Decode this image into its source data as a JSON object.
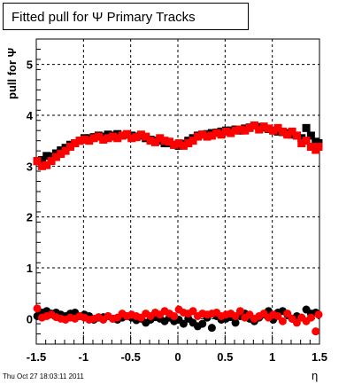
{
  "chart_data": {
    "type": "scatter",
    "title": "Fitted pull for  Ψ   Primary Tracks",
    "xlabel": "η",
    "ylabel": "pull for  Ψ",
    "xlim": [
      -1.5,
      1.5
    ],
    "ylim": [
      -0.5,
      5.5
    ],
    "xticks": [
      "-1.5",
      "-1",
      "-0.5",
      "0",
      "0.5",
      "1",
      "1.5"
    ],
    "yticks": [
      "0",
      "1",
      "2",
      "3",
      "4",
      "5"
    ],
    "grid": true,
    "footer": "Thu Oct 27 18:03:11 2011",
    "colors": {
      "series_black": "#000000",
      "series_red": "#ff0000"
    },
    "series": [
      {
        "marker": "square",
        "color": "#000000",
        "x": [
          -1.49,
          -1.44,
          -1.39,
          -1.34,
          -1.29,
          -1.24,
          -1.19,
          -1.14,
          -1.09,
          -1.04,
          -0.99,
          -0.94,
          -0.89,
          -0.84,
          -0.79,
          -0.74,
          -0.69,
          -0.64,
          -0.59,
          -0.54,
          -0.49,
          -0.44,
          -0.39,
          -0.34,
          -0.29,
          -0.24,
          -0.19,
          -0.14,
          -0.09,
          -0.04,
          0.01,
          0.06,
          0.11,
          0.16,
          0.21,
          0.26,
          0.31,
          0.36,
          0.41,
          0.46,
          0.51,
          0.56,
          0.61,
          0.66,
          0.71,
          0.76,
          0.81,
          0.86,
          0.91,
          0.96,
          1.01,
          1.06,
          1.11,
          1.16,
          1.21,
          1.26,
          1.31,
          1.36,
          1.41,
          1.46,
          1.49
        ],
        "y": [
          3.1,
          3.12,
          3.2,
          3.19,
          3.25,
          3.31,
          3.36,
          3.42,
          3.45,
          3.5,
          3.55,
          3.55,
          3.57,
          3.6,
          3.58,
          3.62,
          3.6,
          3.63,
          3.6,
          3.62,
          3.6,
          3.58,
          3.6,
          3.55,
          3.52,
          3.5,
          3.5,
          3.45,
          3.45,
          3.42,
          3.4,
          3.44,
          3.5,
          3.55,
          3.6,
          3.62,
          3.63,
          3.65,
          3.66,
          3.68,
          3.7,
          3.7,
          3.72,
          3.7,
          3.74,
          3.76,
          3.8,
          3.77,
          3.76,
          3.73,
          3.7,
          3.68,
          3.67,
          3.65,
          3.62,
          3.6,
          3.55,
          3.75,
          3.6,
          3.48,
          3.45
        ]
      },
      {
        "marker": "square",
        "color": "#ff0000",
        "x": [
          -1.49,
          -1.44,
          -1.39,
          -1.34,
          -1.29,
          -1.24,
          -1.19,
          -1.14,
          -1.09,
          -1.04,
          -0.99,
          -0.94,
          -0.89,
          -0.84,
          -0.79,
          -0.74,
          -0.69,
          -0.64,
          -0.59,
          -0.54,
          -0.49,
          -0.44,
          -0.39,
          -0.34,
          -0.29,
          -0.24,
          -0.19,
          -0.14,
          -0.09,
          -0.04,
          0.01,
          0.06,
          0.11,
          0.16,
          0.21,
          0.26,
          0.31,
          0.36,
          0.41,
          0.46,
          0.51,
          0.56,
          0.61,
          0.66,
          0.71,
          0.76,
          0.81,
          0.86,
          0.91,
          0.96,
          1.01,
          1.06,
          1.11,
          1.16,
          1.21,
          1.26,
          1.31,
          1.36,
          1.41,
          1.46,
          1.49
        ],
        "y": [
          3.1,
          3.0,
          3.02,
          3.1,
          3.18,
          3.24,
          3.3,
          3.38,
          3.45,
          3.5,
          3.52,
          3.5,
          3.55,
          3.58,
          3.52,
          3.55,
          3.58,
          3.55,
          3.6,
          3.63,
          3.55,
          3.57,
          3.62,
          3.58,
          3.5,
          3.47,
          3.55,
          3.5,
          3.48,
          3.42,
          3.45,
          3.4,
          3.45,
          3.5,
          3.58,
          3.62,
          3.58,
          3.6,
          3.65,
          3.62,
          3.68,
          3.65,
          3.7,
          3.72,
          3.7,
          3.75,
          3.8,
          3.72,
          3.78,
          3.74,
          3.7,
          3.75,
          3.68,
          3.62,
          3.68,
          3.6,
          3.45,
          3.5,
          3.38,
          3.32,
          3.38
        ]
      },
      {
        "marker": "circle",
        "color": "#000000",
        "x": [
          -1.49,
          -1.44,
          -1.39,
          -1.34,
          -1.29,
          -1.24,
          -1.19,
          -1.14,
          -1.09,
          -1.04,
          -0.99,
          -0.94,
          -0.89,
          -0.84,
          -0.79,
          -0.74,
          -0.69,
          -0.64,
          -0.59,
          -0.54,
          -0.49,
          -0.44,
          -0.39,
          -0.34,
          -0.29,
          -0.24,
          -0.19,
          -0.14,
          -0.09,
          -0.04,
          0.01,
          0.06,
          0.11,
          0.16,
          0.21,
          0.26,
          0.31,
          0.36,
          0.41,
          0.46,
          0.51,
          0.56,
          0.61,
          0.66,
          0.71,
          0.76,
          0.81,
          0.86,
          0.91,
          0.96,
          1.01,
          1.06,
          1.11,
          1.16,
          1.21,
          1.26,
          1.31,
          1.36,
          1.41,
          1.46,
          1.49
        ],
        "y": [
          0.05,
          0.12,
          0.15,
          0.1,
          0.12,
          0.08,
          0.05,
          0.1,
          0.12,
          0.05,
          0.08,
          0.05,
          -0.02,
          0.02,
          0.03,
          0.05,
          0.0,
          -0.02,
          0.02,
          0.05,
          0.02,
          -0.03,
          0.0,
          -0.08,
          -0.02,
          0.03,
          0.0,
          -0.05,
          0.02,
          -0.05,
          -0.02,
          -0.1,
          0.0,
          -0.08,
          -0.15,
          -0.1,
          0.02,
          -0.18,
          0.05,
          -0.02,
          0.0,
          0.03,
          -0.08,
          0.05,
          0.1,
          0.0,
          -0.05,
          0.02,
          0.08,
          0.15,
          -0.02,
          0.12,
          0.15,
          0.08,
          0.0,
          0.05,
          0.02,
          0.18,
          0.1,
          0.12,
          0.08
        ]
      },
      {
        "marker": "circle",
        "color": "#ff0000",
        "x": [
          -1.49,
          -1.44,
          -1.39,
          -1.34,
          -1.29,
          -1.24,
          -1.19,
          -1.14,
          -1.09,
          -1.04,
          -0.99,
          -0.94,
          -0.89,
          -0.84,
          -0.79,
          -0.74,
          -0.69,
          -0.64,
          -0.59,
          -0.54,
          -0.49,
          -0.44,
          -0.39,
          -0.34,
          -0.29,
          -0.24,
          -0.19,
          -0.14,
          -0.09,
          -0.04,
          0.01,
          0.06,
          0.11,
          0.16,
          0.21,
          0.26,
          0.31,
          0.36,
          0.41,
          0.46,
          0.51,
          0.56,
          0.61,
          0.66,
          0.71,
          0.76,
          0.81,
          0.86,
          0.91,
          0.96,
          1.01,
          1.06,
          1.11,
          1.16,
          1.21,
          1.26,
          1.31,
          1.36,
          1.41,
          1.46,
          1.49
        ],
        "y": [
          0.2,
          0.02,
          0.05,
          0.08,
          0.03,
          0.0,
          -0.02,
          0.02,
          0.0,
          0.05,
          0.02,
          -0.02,
          0.0,
          0.03,
          -0.02,
          0.05,
          0.0,
          0.02,
          0.1,
          0.05,
          0.08,
          0.05,
          0.02,
          0.1,
          0.05,
          0.12,
          0.08,
          0.15,
          0.1,
          0.05,
          0.18,
          0.12,
          0.1,
          0.15,
          0.05,
          0.1,
          0.08,
          0.1,
          0.12,
          0.05,
          0.08,
          0.1,
          0.05,
          0.15,
          0.02,
          0.08,
          0.0,
          0.05,
          0.1,
          0.02,
          0.08,
          0.05,
          -0.05,
          0.1,
          0.0,
          -0.08,
          0.02,
          -0.05,
          0.02,
          -0.25,
          0.08
        ]
      }
    ]
  }
}
